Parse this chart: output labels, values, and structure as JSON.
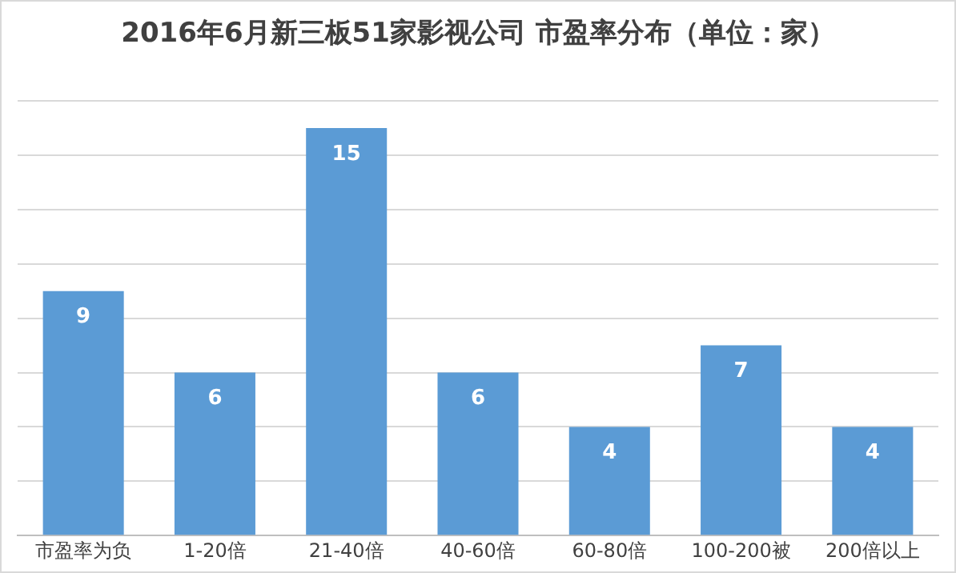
{
  "chart_data": {
    "type": "bar",
    "title": "2016年6月新三板51家影视公司  市盈率分布（单位：家）",
    "categories": [
      "市盈率为负",
      "1-20倍",
      "21-40倍",
      "40-60倍",
      "60-80倍",
      "100-200被",
      "200倍以上"
    ],
    "values": [
      9,
      6,
      15,
      6,
      4,
      7,
      4
    ],
    "color": "#5b9bd5",
    "data_labels": true,
    "grid": "y",
    "legend": false,
    "tick_labels": "x",
    "ylim": [
      0,
      16
    ],
    "yticks": [
      {
        "value": 0,
        "label": null
      },
      {
        "value": 2,
        "label": null
      },
      {
        "value": 4,
        "label": null
      },
      {
        "value": 6,
        "label": null
      },
      {
        "value": 8,
        "label": null
      },
      {
        "value": 10,
        "label": null
      },
      {
        "value": 12,
        "label": null
      },
      {
        "value": 14,
        "label": null
      },
      {
        "value": 16,
        "label": null
      }
    ]
  }
}
